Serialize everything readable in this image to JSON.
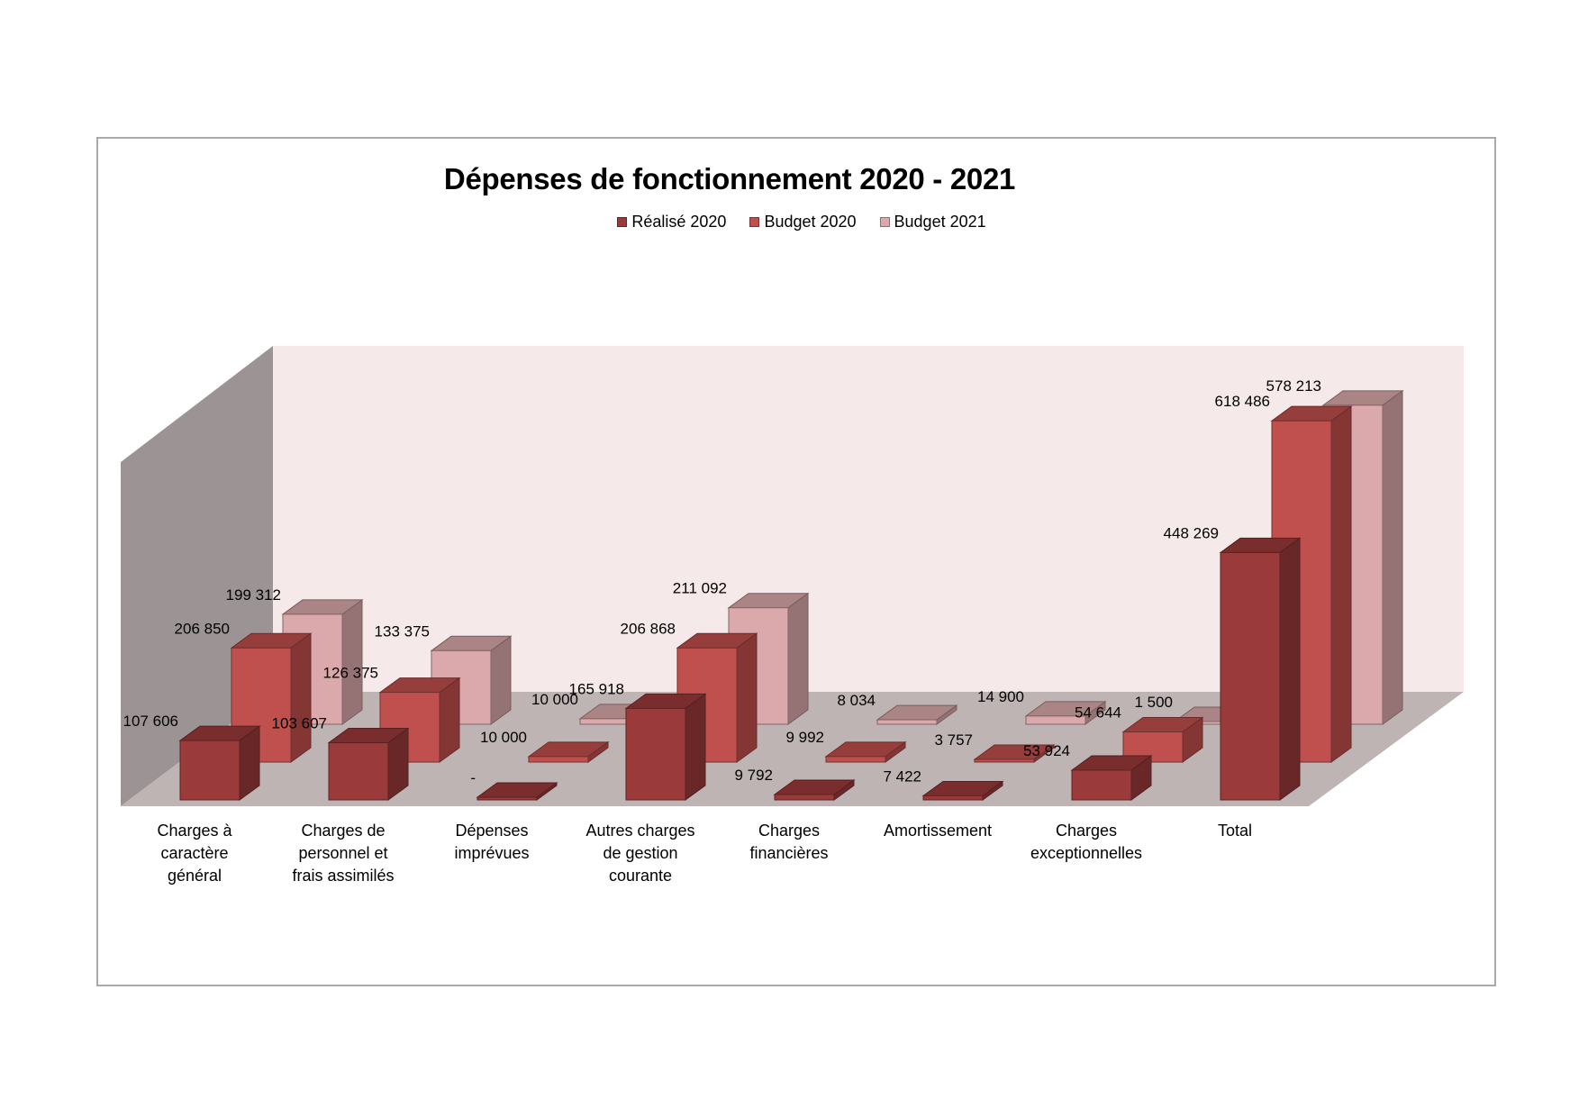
{
  "chart_data": {
    "type": "bar",
    "title": "Dépenses de fonctionnement 2020 - 2021",
    "legend_position": "top",
    "categories": [
      "Charges à caractère général",
      "Charges de personnel et frais assimilés",
      "Dépenses imprévues",
      "Autres charges de gestion courante",
      "Charges financières",
      "Amortissement",
      "Charges exceptionnelles",
      "Total"
    ],
    "category_lines": [
      [
        "Charges à",
        "caractère",
        "général"
      ],
      [
        "Charges de",
        "personnel et",
        "frais assimilés"
      ],
      [
        "Dépenses",
        "imprévues"
      ],
      [
        "Autres charges",
        "de gestion",
        "courante"
      ],
      [
        "Charges",
        "financières"
      ],
      [
        "Amortissement"
      ],
      [
        "Charges",
        "exceptionnelles"
      ],
      [
        "Total"
      ]
    ],
    "series": [
      {
        "name": "Réalisé 2020",
        "color": "#9b3a3a",
        "values": [
          107606,
          103607,
          0,
          165918,
          9792,
          7422,
          53924,
          448269
        ],
        "labels": [
          "107 606",
          "103 607",
          "-",
          "165 918",
          "9 792",
          "7 422",
          "53 924",
          "448 269"
        ]
      },
      {
        "name": "Budget 2020",
        "color": "#c0504d",
        "values": [
          206850,
          126375,
          10000,
          206868,
          9992,
          3757,
          54644,
          618486
        ],
        "labels": [
          "206 850",
          "126 375",
          "10 000",
          "206 868",
          "9 992",
          "3 757",
          "54 644",
          "618 486"
        ]
      },
      {
        "name": "Budget 2021",
        "color": "#dba9ab",
        "values": [
          199312,
          133375,
          10000,
          211092,
          8034,
          14900,
          1500,
          578213
        ],
        "labels": [
          "199 312",
          "133 375",
          "10 000",
          "211 092",
          "8 034",
          "14 900",
          "1 500",
          "578 213"
        ]
      }
    ],
    "grid": false,
    "colors": {
      "back_wall": "#f5e9e9",
      "side_wall": "#9c9494",
      "floor": "#bfb4b4"
    }
  }
}
